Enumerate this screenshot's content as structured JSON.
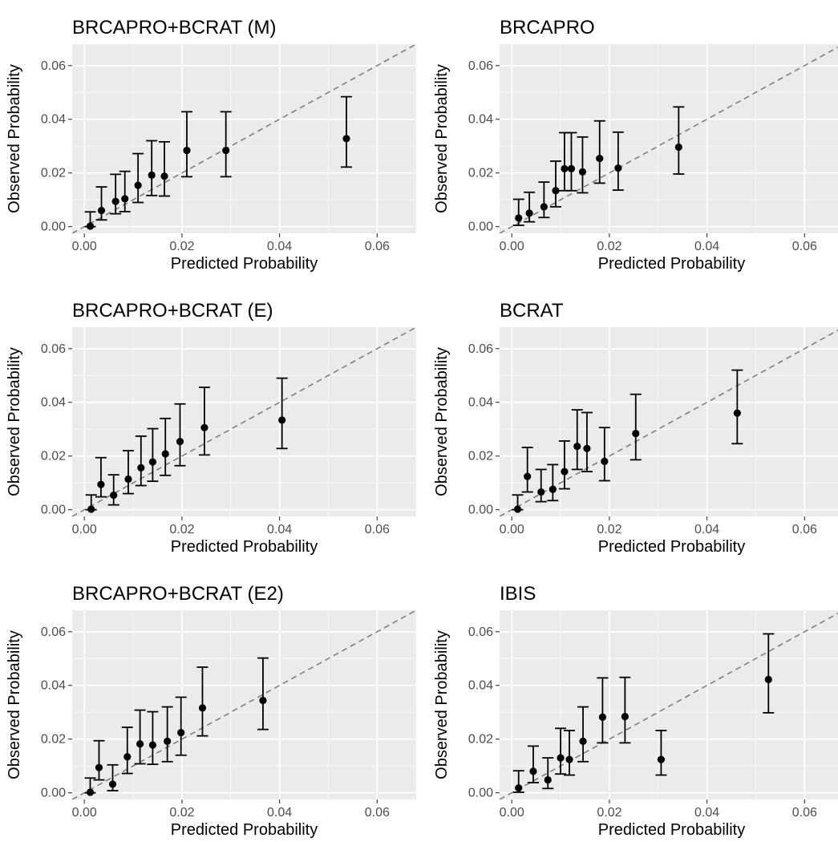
{
  "chart_data": [
    {
      "type": "scatter",
      "title": "BRCAPRO+BCRAT (M)",
      "xlabel": "Predicted Probability",
      "ylabel": "Observed Probability",
      "xlim": [
        -0.0025,
        0.068
      ],
      "ylim": [
        -0.0025,
        0.068
      ],
      "xticks": [
        0.0,
        0.02,
        0.04,
        0.06
      ],
      "yticks": [
        0.0,
        0.02,
        0.04,
        0.06
      ],
      "xtick_labels": [
        "0.00",
        "0.02",
        "0.04",
        "0.06"
      ],
      "ytick_labels": [
        "0.00",
        "0.02",
        "0.04",
        "0.06"
      ],
      "reference_line": "y = x (dashed)",
      "points": [
        {
          "x": 0.0012,
          "y": 0.0002,
          "lo": 0.0,
          "hi": 0.0055
        },
        {
          "x": 0.0035,
          "y": 0.006,
          "lo": 0.0025,
          "hi": 0.0148
        },
        {
          "x": 0.0064,
          "y": 0.0094,
          "lo": 0.0048,
          "hi": 0.0195
        },
        {
          "x": 0.0083,
          "y": 0.0104,
          "lo": 0.0056,
          "hi": 0.0206
        },
        {
          "x": 0.011,
          "y": 0.0154,
          "lo": 0.009,
          "hi": 0.0272
        },
        {
          "x": 0.0138,
          "y": 0.0192,
          "lo": 0.0116,
          "hi": 0.032
        },
        {
          "x": 0.0164,
          "y": 0.0188,
          "lo": 0.0114,
          "hi": 0.0316
        },
        {
          "x": 0.021,
          "y": 0.0284,
          "lo": 0.0186,
          "hi": 0.0428
        },
        {
          "x": 0.029,
          "y": 0.0284,
          "lo": 0.0186,
          "hi": 0.0428
        },
        {
          "x": 0.0537,
          "y": 0.0328,
          "lo": 0.0222,
          "hi": 0.0484
        }
      ]
    },
    {
      "type": "scatter",
      "title": "BRCAPRO",
      "xlabel": "Predicted Probability",
      "ylabel": "Observed Probability",
      "xlim": [
        -0.0025,
        0.068
      ],
      "ylim": [
        -0.0025,
        0.068
      ],
      "xticks": [
        0.0,
        0.02,
        0.04,
        0.06
      ],
      "yticks": [
        0.0,
        0.02,
        0.04,
        0.06
      ],
      "xtick_labels": [
        "0.00",
        "0.02",
        "0.04",
        "0.06"
      ],
      "ytick_labels": [
        "0.00",
        "0.02",
        "0.04",
        "0.06"
      ],
      "reference_line": "y = x (dashed)",
      "points": [
        {
          "x": 0.0014,
          "y": 0.0032,
          "lo": 0.0005,
          "hi": 0.0102
        },
        {
          "x": 0.0036,
          "y": 0.005,
          "lo": 0.0018,
          "hi": 0.0128
        },
        {
          "x": 0.0066,
          "y": 0.0074,
          "lo": 0.0034,
          "hi": 0.0166
        },
        {
          "x": 0.009,
          "y": 0.0134,
          "lo": 0.0074,
          "hi": 0.0244
        },
        {
          "x": 0.0108,
          "y": 0.0216,
          "lo": 0.0134,
          "hi": 0.035
        },
        {
          "x": 0.0122,
          "y": 0.0216,
          "lo": 0.0134,
          "hi": 0.035
        },
        {
          "x": 0.0145,
          "y": 0.0204,
          "lo": 0.0126,
          "hi": 0.0334
        },
        {
          "x": 0.018,
          "y": 0.0254,
          "lo": 0.0162,
          "hi": 0.0394
        },
        {
          "x": 0.0218,
          "y": 0.0218,
          "lo": 0.0136,
          "hi": 0.0352
        },
        {
          "x": 0.0342,
          "y": 0.0296,
          "lo": 0.0196,
          "hi": 0.0446
        }
      ]
    },
    {
      "type": "scatter",
      "title": "BRCAPRO+BCRAT (E)",
      "xlabel": "Predicted Probability",
      "ylabel": "Observed Probability",
      "xlim": [
        -0.0025,
        0.068
      ],
      "ylim": [
        -0.0025,
        0.068
      ],
      "xticks": [
        0.0,
        0.02,
        0.04,
        0.06
      ],
      "yticks": [
        0.0,
        0.02,
        0.04,
        0.06
      ],
      "xtick_labels": [
        "0.00",
        "0.02",
        "0.04",
        "0.06"
      ],
      "ytick_labels": [
        "0.00",
        "0.02",
        "0.04",
        "0.06"
      ],
      "reference_line": "y = x (dashed)",
      "points": [
        {
          "x": 0.0014,
          "y": 0.0002,
          "lo": 0.0,
          "hi": 0.0055
        },
        {
          "x": 0.0034,
          "y": 0.0094,
          "lo": 0.0048,
          "hi": 0.0194
        },
        {
          "x": 0.006,
          "y": 0.0054,
          "lo": 0.0018,
          "hi": 0.013
        },
        {
          "x": 0.009,
          "y": 0.0114,
          "lo": 0.006,
          "hi": 0.022
        },
        {
          "x": 0.0116,
          "y": 0.0156,
          "lo": 0.009,
          "hi": 0.0274
        },
        {
          "x": 0.014,
          "y": 0.0178,
          "lo": 0.0106,
          "hi": 0.0302
        },
        {
          "x": 0.0166,
          "y": 0.0208,
          "lo": 0.0128,
          "hi": 0.034
        },
        {
          "x": 0.0196,
          "y": 0.0254,
          "lo": 0.0164,
          "hi": 0.0394
        },
        {
          "x": 0.0246,
          "y": 0.0306,
          "lo": 0.0204,
          "hi": 0.0456
        },
        {
          "x": 0.0405,
          "y": 0.0334,
          "lo": 0.0228,
          "hi": 0.049
        }
      ]
    },
    {
      "type": "scatter",
      "title": "BCRAT",
      "xlabel": "Predicted Probability",
      "ylabel": "Observed Probability",
      "xlim": [
        -0.0025,
        0.068
      ],
      "ylim": [
        -0.0025,
        0.068
      ],
      "xticks": [
        0.0,
        0.02,
        0.04,
        0.06
      ],
      "yticks": [
        0.0,
        0.02,
        0.04,
        0.06
      ],
      "xtick_labels": [
        "0.00",
        "0.02",
        "0.04",
        "0.06"
      ],
      "ytick_labels": [
        "0.00",
        "0.02",
        "0.04",
        "0.06"
      ],
      "reference_line": "y = x (dashed)",
      "points": [
        {
          "x": 0.0012,
          "y": 0.0002,
          "lo": 0.0,
          "hi": 0.0055
        },
        {
          "x": 0.0032,
          "y": 0.0124,
          "lo": 0.0066,
          "hi": 0.0232
        },
        {
          "x": 0.006,
          "y": 0.0066,
          "lo": 0.003,
          "hi": 0.015
        },
        {
          "x": 0.0084,
          "y": 0.0076,
          "lo": 0.0034,
          "hi": 0.0168
        },
        {
          "x": 0.0108,
          "y": 0.0142,
          "lo": 0.0078,
          "hi": 0.0256
        },
        {
          "x": 0.0134,
          "y": 0.0236,
          "lo": 0.015,
          "hi": 0.0372
        },
        {
          "x": 0.0154,
          "y": 0.0228,
          "lo": 0.0142,
          "hi": 0.0362
        },
        {
          "x": 0.019,
          "y": 0.018,
          "lo": 0.0108,
          "hi": 0.0306
        },
        {
          "x": 0.0254,
          "y": 0.0284,
          "lo": 0.0186,
          "hi": 0.043
        },
        {
          "x": 0.0462,
          "y": 0.036,
          "lo": 0.0246,
          "hi": 0.052
        }
      ]
    },
    {
      "type": "scatter",
      "title": "BRCAPRO+BCRAT (E2)",
      "xlabel": "Predicted Probability",
      "ylabel": "Observed Probability",
      "xlim": [
        -0.0025,
        0.068
      ],
      "ylim": [
        -0.0025,
        0.068
      ],
      "xticks": [
        0.0,
        0.02,
        0.04,
        0.06
      ],
      "yticks": [
        0.0,
        0.02,
        0.04,
        0.06
      ],
      "xtick_labels": [
        "0.00",
        "0.02",
        "0.04",
        "0.06"
      ],
      "ytick_labels": [
        "0.00",
        "0.02",
        "0.04",
        "0.06"
      ],
      "reference_line": "y = x (dashed)",
      "points": [
        {
          "x": 0.0012,
          "y": 0.0002,
          "lo": 0.0,
          "hi": 0.0055
        },
        {
          "x": 0.003,
          "y": 0.0094,
          "lo": 0.0048,
          "hi": 0.0194
        },
        {
          "x": 0.0058,
          "y": 0.0032,
          "lo": 0.0008,
          "hi": 0.0104
        },
        {
          "x": 0.0088,
          "y": 0.0134,
          "lo": 0.0072,
          "hi": 0.0244
        },
        {
          "x": 0.0114,
          "y": 0.0182,
          "lo": 0.0108,
          "hi": 0.0308
        },
        {
          "x": 0.014,
          "y": 0.0178,
          "lo": 0.0106,
          "hi": 0.0302
        },
        {
          "x": 0.017,
          "y": 0.0192,
          "lo": 0.0116,
          "hi": 0.032
        },
        {
          "x": 0.0198,
          "y": 0.0224,
          "lo": 0.014,
          "hi": 0.0356
        },
        {
          "x": 0.0242,
          "y": 0.0316,
          "lo": 0.0212,
          "hi": 0.0468
        },
        {
          "x": 0.0366,
          "y": 0.0344,
          "lo": 0.0236,
          "hi": 0.0502
        }
      ]
    },
    {
      "type": "scatter",
      "title": "IBIS",
      "xlabel": "Predicted Probability",
      "ylabel": "Observed Probability",
      "xlim": [
        -0.0025,
        0.068
      ],
      "ylim": [
        -0.0025,
        0.068
      ],
      "xticks": [
        0.0,
        0.02,
        0.04,
        0.06
      ],
      "yticks": [
        0.0,
        0.02,
        0.04,
        0.06
      ],
      "xtick_labels": [
        "0.00",
        "0.02",
        "0.04",
        "0.06"
      ],
      "ytick_labels": [
        "0.00",
        "0.02",
        "0.04",
        "0.06"
      ],
      "reference_line": "y = x (dashed)",
      "points": [
        {
          "x": 0.0014,
          "y": 0.0018,
          "lo": 0.0002,
          "hi": 0.0082
        },
        {
          "x": 0.0044,
          "y": 0.008,
          "lo": 0.0038,
          "hi": 0.0174
        },
        {
          "x": 0.0074,
          "y": 0.0048,
          "lo": 0.0016,
          "hi": 0.013
        },
        {
          "x": 0.01,
          "y": 0.013,
          "lo": 0.007,
          "hi": 0.024
        },
        {
          "x": 0.0118,
          "y": 0.0124,
          "lo": 0.0066,
          "hi": 0.0232
        },
        {
          "x": 0.0146,
          "y": 0.0192,
          "lo": 0.0116,
          "hi": 0.032
        },
        {
          "x": 0.0186,
          "y": 0.0282,
          "lo": 0.0186,
          "hi": 0.0428
        },
        {
          "x": 0.0232,
          "y": 0.0284,
          "lo": 0.0186,
          "hi": 0.043
        },
        {
          "x": 0.0306,
          "y": 0.0124,
          "lo": 0.0066,
          "hi": 0.0232
        },
        {
          "x": 0.0526,
          "y": 0.0422,
          "lo": 0.0298,
          "hi": 0.0592
        }
      ]
    }
  ]
}
